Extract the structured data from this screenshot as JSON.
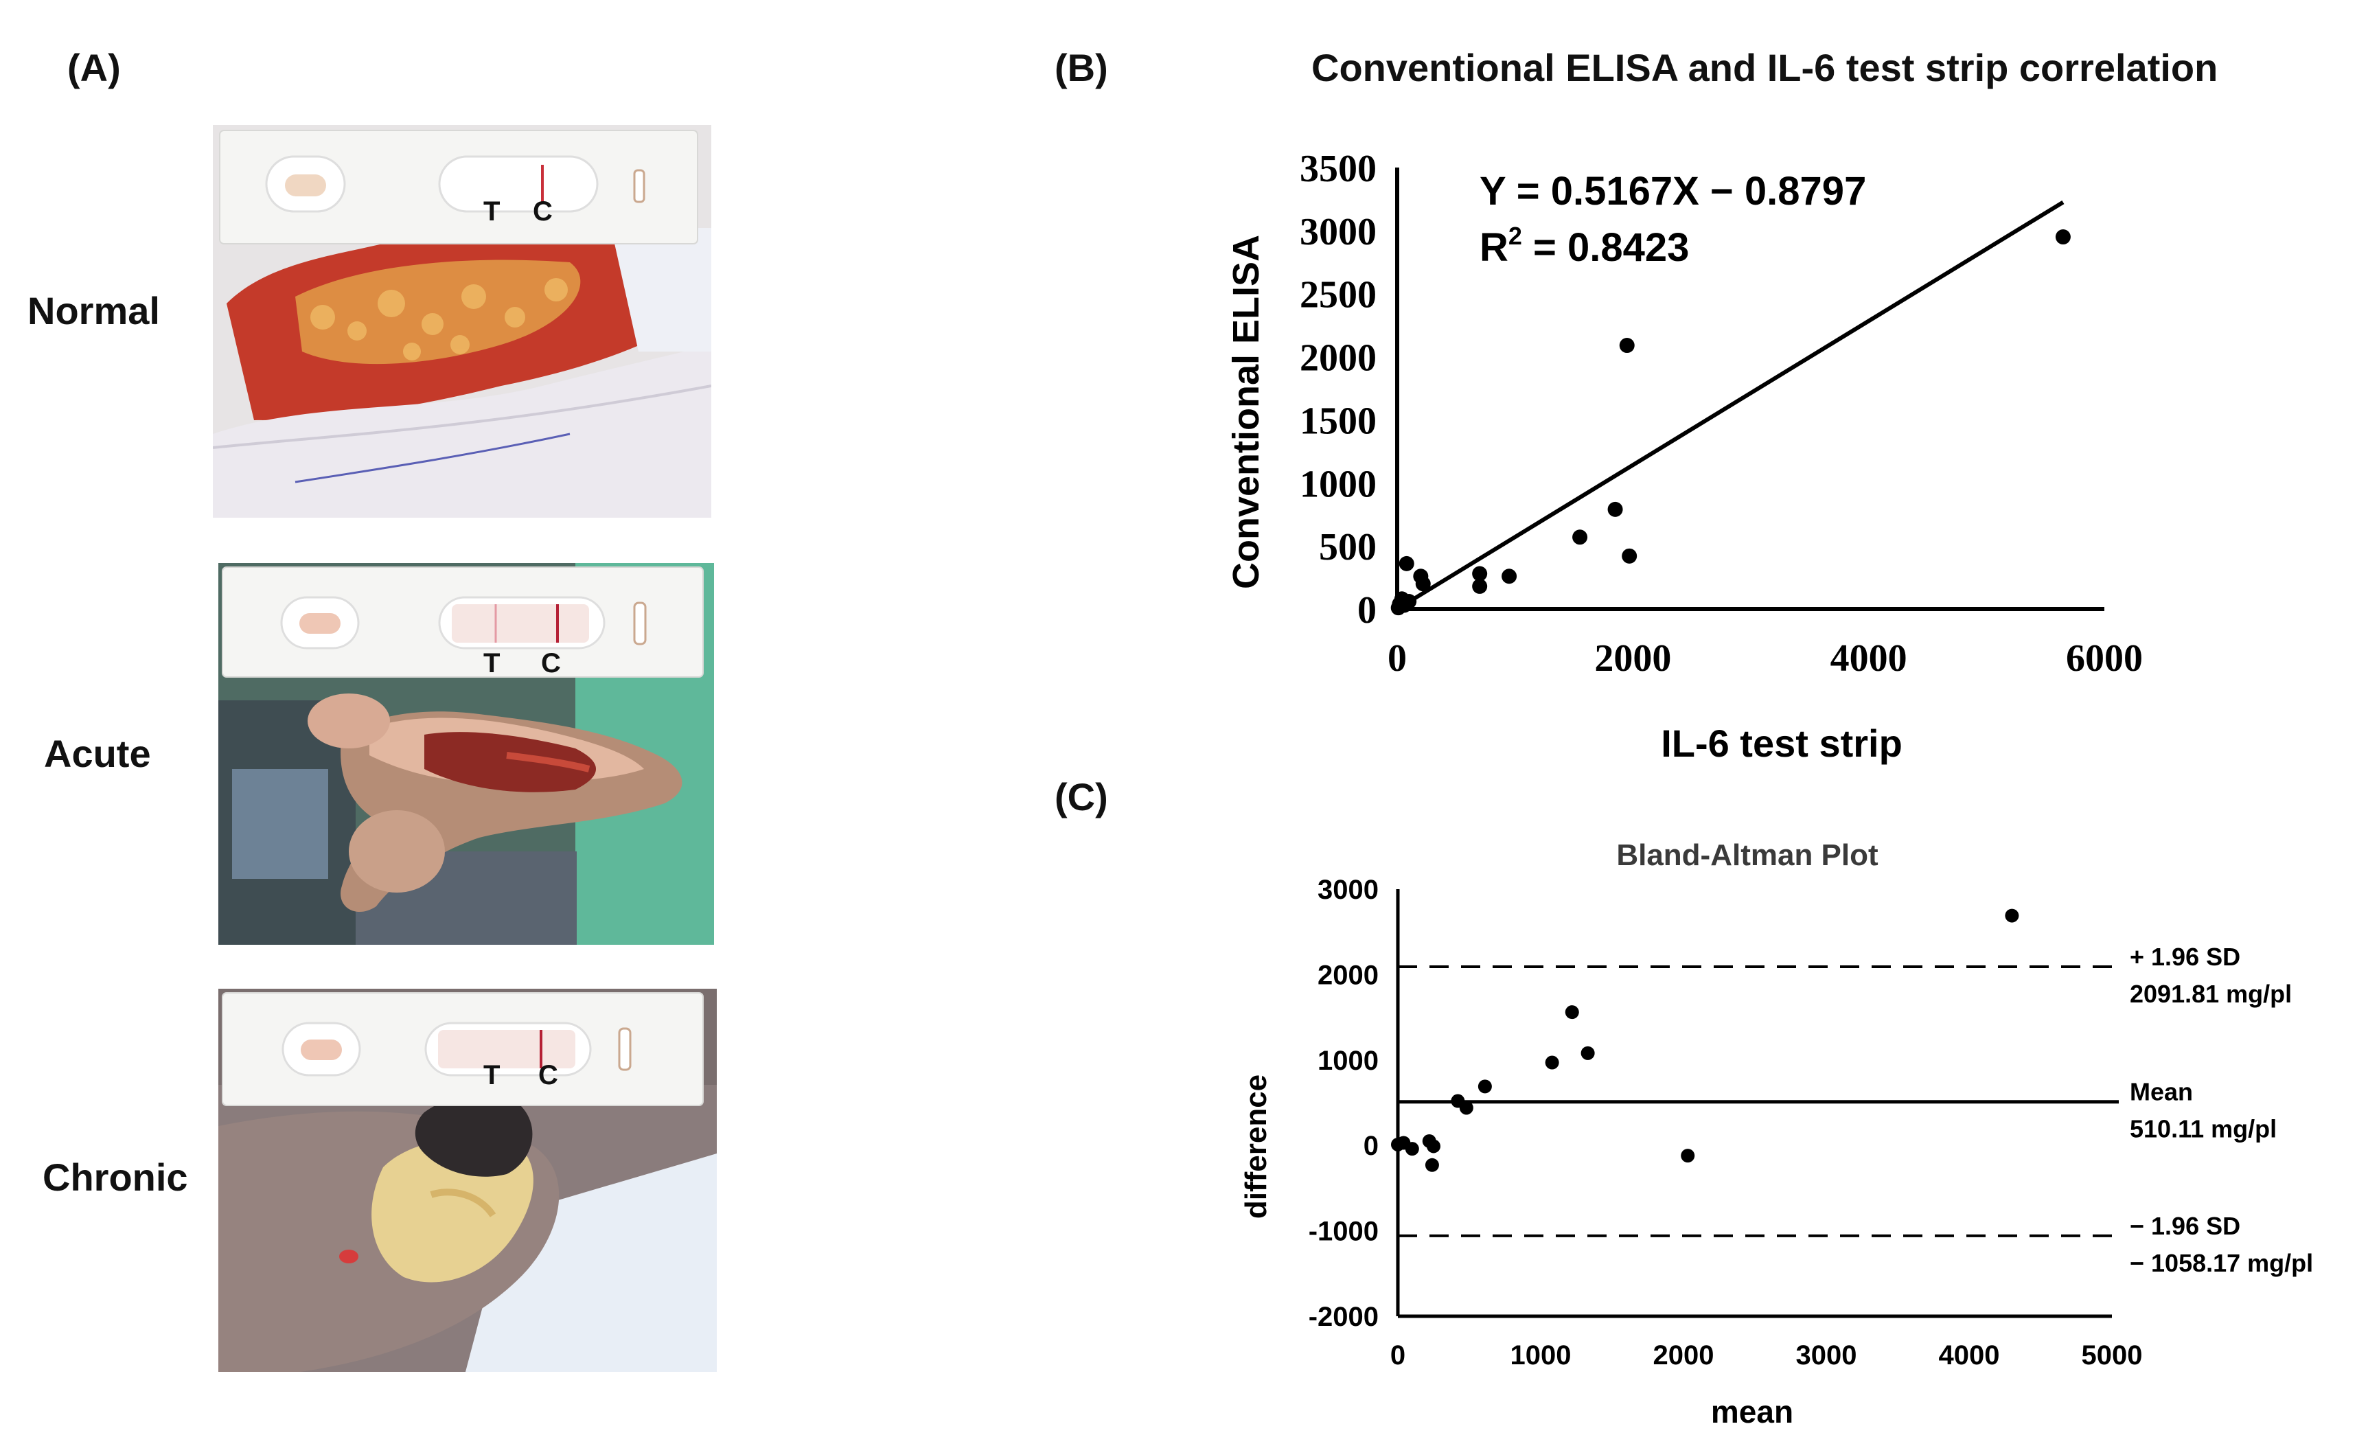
{
  "panel_a": {
    "label": "(A)",
    "rows": [
      {
        "label": "Normal",
        "t": "T",
        "c": "C"
      },
      {
        "label": "Acute",
        "t": "T",
        "c": "C"
      },
      {
        "label": "Chronic",
        "t": "T",
        "c": "C"
      }
    ]
  },
  "chart_data": [
    {
      "type": "scatter",
      "panel_label": "(B)",
      "title": "Conventional ELISA and IL-6 test strip correlation",
      "xlabel": "IL-6 test strip",
      "ylabel": "Conventional ELISA",
      "xlim": [
        0,
        6000
      ],
      "ylim": [
        0,
        3500
      ],
      "xticks": [
        "0",
        "2000",
        "4000",
        "6000"
      ],
      "yticks": [
        "0",
        "500",
        "1000",
        "1500",
        "2000",
        "2500",
        "3000",
        "3500"
      ],
      "equation": "Y = 0.5167X − 0.8797",
      "r2_label": "R",
      "r2_sup": "2",
      "r2_value": " = 0.8423",
      "fit": {
        "slope": 0.5167,
        "intercept": -0.8797
      },
      "points": [
        [
          10,
          10
        ],
        [
          20,
          40
        ],
        [
          40,
          80
        ],
        [
          60,
          30
        ],
        [
          100,
          60
        ],
        [
          80,
          360
        ],
        [
          200,
          260
        ],
        [
          220,
          200
        ],
        [
          700,
          280
        ],
        [
          700,
          180
        ],
        [
          950,
          260
        ],
        [
          1550,
          570
        ],
        [
          1950,
          2090
        ],
        [
          1850,
          790
        ],
        [
          1970,
          420
        ],
        [
          5650,
          2950
        ]
      ]
    },
    {
      "type": "scatter",
      "panel_label": "(C)",
      "title": "Bland-Altman Plot",
      "xlabel": "mean",
      "ylabel": "difference",
      "xlim": [
        0,
        5000
      ],
      "ylim": [
        -2000,
        3000
      ],
      "xticks": [
        "0",
        "1000",
        "2000",
        "3000",
        "4000",
        "5000"
      ],
      "yticks": [
        "-2000",
        "-1000",
        "0",
        "1000",
        "2000",
        "3000"
      ],
      "lines": {
        "upper": {
          "value": 2091.81,
          "label": "+ 1.96 SD",
          "value_label": "2091.81 mg/pl"
        },
        "mean": {
          "value": 510.11,
          "label": "Mean",
          "value_label": "510.11 mg/pl"
        },
        "lower": {
          "value": -1058.17,
          "label": "− 1.96 SD",
          "value_label": "− 1058.17 mg/pl"
        }
      },
      "points": [
        [
          0,
          10
        ],
        [
          40,
          30
        ],
        [
          100,
          -40
        ],
        [
          220,
          50
        ],
        [
          250,
          -10
        ],
        [
          240,
          -230
        ],
        [
          420,
          520
        ],
        [
          480,
          440
        ],
        [
          610,
          690
        ],
        [
          1080,
          970
        ],
        [
          1220,
          1560
        ],
        [
          1330,
          1080
        ],
        [
          2030,
          -120
        ],
        [
          4300,
          2690
        ]
      ]
    }
  ]
}
